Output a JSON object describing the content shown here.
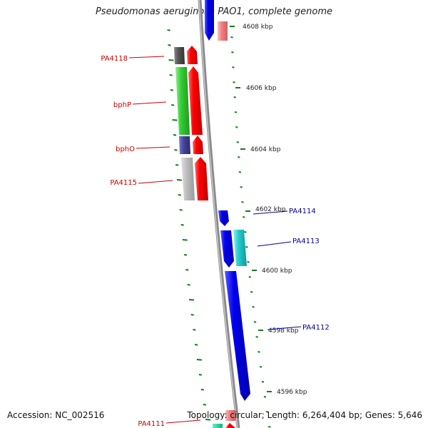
{
  "title": "Pseudomonas aeruginosa PAO1, complete genome",
  "footer": {
    "accession": "Accession: NC_002516",
    "summary": "Topology: circular; Length: 6,264,404 bp; Genes: 5,646"
  },
  "ticks": [
    {
      "label": "4608 kbp"
    },
    {
      "label": "4606 kbp"
    },
    {
      "label": "4604 kbp"
    },
    {
      "label": "4602 kbp"
    },
    {
      "label": "4600 kbp"
    },
    {
      "label": "4598 kbp"
    },
    {
      "label": "4596 kbp"
    }
  ],
  "genes": [
    {
      "label": "PA4118",
      "color": "#cc0000"
    },
    {
      "label": "bphP",
      "color": "#cc0000"
    },
    {
      "label": "bphO",
      "color": "#cc0000"
    },
    {
      "label": "PA4115",
      "color": "#cc0000"
    },
    {
      "label": "PA4114",
      "color": "#000099"
    },
    {
      "label": "PA4113",
      "color": "#000099"
    },
    {
      "label": "PA4112",
      "color": "#000099"
    },
    {
      "label": "PA4111",
      "color": "#cc0000"
    }
  ],
  "colors": {
    "backbone": "#8a8a8a",
    "tick": "#1a7a1a",
    "forward_strand": "#ff0000",
    "reverse_strand": "#0000ee"
  }
}
